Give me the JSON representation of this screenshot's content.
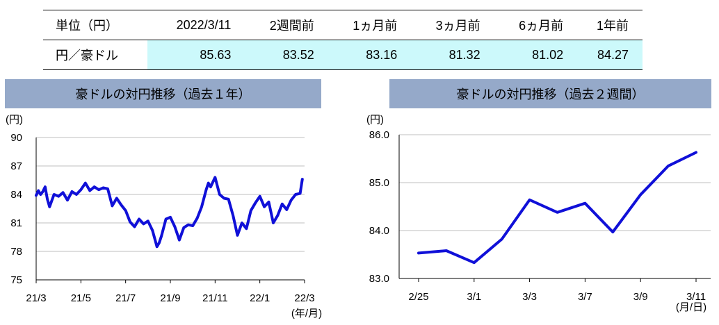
{
  "table": {
    "headers": [
      "単位（円）",
      "2022/3/11",
      "2週間前",
      "1ヵ月前",
      "3ヵ月前",
      "6ヵ月前",
      "1年前"
    ],
    "row_label": "円／豪ドル",
    "values": [
      "85.63",
      "83.52",
      "83.16",
      "81.32",
      "81.02",
      "84.27"
    ]
  },
  "chart_data": [
    {
      "type": "line",
      "title": "豪ドルの対円推移（過去１年）",
      "ylabel": "(円)",
      "xlabel": "(年/月)",
      "x_ticks": [
        "21/3",
        "21/5",
        "21/7",
        "21/9",
        "21/11",
        "22/1",
        "22/3"
      ],
      "y_ticks": [
        75,
        78,
        81,
        84,
        87,
        90
      ],
      "ylim": [
        75,
        90
      ],
      "xlim": [
        0,
        12
      ],
      "grid": true,
      "color": "#1010d8",
      "series": [
        {
          "x": [
            0,
            0.1,
            0.2,
            0.3,
            0.4,
            0.5,
            0.6,
            0.8,
            1.0,
            1.2,
            1.4,
            1.6,
            1.8,
            2.0,
            2.2,
            2.4,
            2.6,
            2.8,
            3.0,
            3.2,
            3.4,
            3.6,
            3.8,
            4.0,
            4.2,
            4.4,
            4.6,
            4.8,
            5.0,
            5.2,
            5.4,
            5.5,
            5.6,
            5.8,
            6.0,
            6.2,
            6.4,
            6.6,
            6.8,
            7.0,
            7.2,
            7.4,
            7.6,
            7.7,
            7.8,
            8.0,
            8.2,
            8.4,
            8.6,
            8.8,
            9.0,
            9.2,
            9.4,
            9.6,
            9.8,
            10.0,
            10.2,
            10.4,
            10.6,
            10.8,
            11.0,
            11.2,
            11.4,
            11.6,
            11.8,
            11.9
          ],
          "values": [
            83.9,
            84.4,
            84.0,
            84.3,
            84.8,
            83.5,
            82.7,
            84.0,
            83.8,
            84.2,
            83.4,
            84.3,
            84.0,
            84.5,
            85.2,
            84.4,
            84.8,
            84.5,
            84.7,
            84.6,
            82.8,
            83.6,
            82.9,
            82.3,
            81.1,
            80.6,
            81.4,
            80.9,
            81.2,
            80.2,
            78.5,
            78.9,
            79.6,
            81.4,
            81.6,
            80.6,
            79.2,
            80.5,
            80.8,
            80.7,
            81.5,
            82.7,
            84.5,
            85.2,
            84.8,
            85.8,
            84.0,
            83.6,
            83.5,
            81.8,
            79.7,
            81.0,
            80.4,
            82.3,
            83.1,
            83.8,
            82.7,
            83.2,
            81.0,
            81.8,
            83.0,
            82.4,
            83.4,
            84.0,
            84.1,
            85.6
          ]
        }
      ]
    },
    {
      "type": "line",
      "title": "豪ドルの対円推移（過去２週間）",
      "ylabel": "(円)",
      "xlabel": "(月/日)",
      "x_ticks": [
        "2/25",
        "3/1",
        "3/3",
        "3/7",
        "3/9",
        "3/11"
      ],
      "y_ticks": [
        "83.0",
        "84.0",
        "85.0",
        "86.0"
      ],
      "ylim": [
        83.0,
        86.0
      ],
      "grid": true,
      "color": "#1010d8",
      "series": [
        {
          "dates": [
            "2/25",
            "2/28",
            "3/1",
            "3/2",
            "3/3",
            "3/4",
            "3/7",
            "3/8",
            "3/9",
            "3/10",
            "3/11"
          ],
          "values": [
            83.53,
            83.58,
            83.33,
            83.82,
            84.64,
            84.38,
            84.57,
            83.97,
            84.75,
            85.35,
            85.63
          ]
        }
      ]
    }
  ]
}
